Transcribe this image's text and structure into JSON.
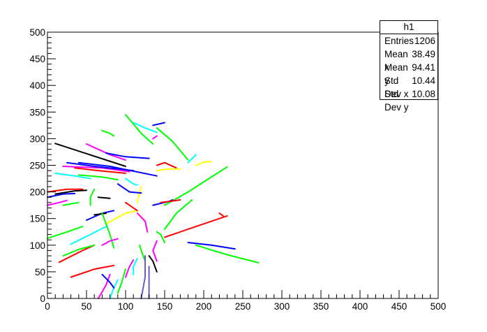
{
  "stats": {
    "title": "h1",
    "rows": [
      {
        "label": "Entries",
        "value": "1206"
      },
      {
        "label": "Mean x",
        "value": "38.49"
      },
      {
        "label": "Mean y",
        "value": "94.41"
      },
      {
        "label": "Std Dev x",
        "value": "10.44"
      },
      {
        "label": "Std Dev y",
        "value": "10.08"
      }
    ]
  },
  "chart_data": {
    "type": "scatter",
    "title": "",
    "xlabel": "",
    "ylabel": "",
    "xlim": [
      0,
      500
    ],
    "ylim": [
      0,
      500
    ],
    "x_ticks": [
      0,
      50,
      100,
      150,
      200,
      250,
      300,
      350,
      400,
      450,
      500
    ],
    "y_ticks": [
      0,
      50,
      100,
      150,
      200,
      250,
      300,
      350,
      400,
      450,
      500
    ],
    "grid": false,
    "legend": "none",
    "tracks": [
      {
        "color": "#000000",
        "points": [
          [
            10,
            291
          ],
          [
            100,
            248
          ]
        ]
      },
      {
        "color": "#ff00ff",
        "points": [
          [
            20,
            248
          ],
          [
            70,
            245
          ],
          [
            105,
            238
          ]
        ]
      },
      {
        "color": "#0000ff",
        "points": [
          [
            25,
            255
          ],
          [
            60,
            248
          ],
          [
            110,
            240
          ]
        ]
      },
      {
        "color": "#ff0000",
        "points": [
          [
            35,
            245
          ],
          [
            65,
            240
          ],
          [
            100,
            235
          ]
        ]
      },
      {
        "color": "#0000ff",
        "points": [
          [
            40,
            255
          ],
          [
            80,
            248
          ],
          [
            140,
            230
          ]
        ]
      },
      {
        "color": "#ff00ff",
        "points": [
          [
            50,
            290
          ],
          [
            80,
            270
          ],
          [
            100,
            260
          ]
        ]
      },
      {
        "color": "#0000ff",
        "points": [
          [
            75,
            273
          ],
          [
            100,
            266
          ],
          [
            130,
            263
          ]
        ]
      },
      {
        "color": "#00ffff",
        "points": [
          [
            10,
            235
          ],
          [
            35,
            230
          ],
          [
            55,
            225
          ]
        ]
      },
      {
        "color": "#00ff00",
        "points": [
          [
            40,
            232
          ],
          [
            70,
            228
          ],
          [
            90,
            223
          ]
        ]
      },
      {
        "color": "#ff0000",
        "points": [
          [
            0,
            200
          ],
          [
            25,
            205
          ],
          [
            45,
            205
          ]
        ]
      },
      {
        "color": "#000000",
        "points": [
          [
            10,
            196
          ],
          [
            35,
            202
          ],
          [
            50,
            203
          ]
        ]
      },
      {
        "color": "#0000ff",
        "points": [
          [
            0,
            190
          ],
          [
            20,
            196
          ],
          [
            35,
            197
          ]
        ]
      },
      {
        "color": "#ff00ff",
        "points": [
          [
            0,
            175
          ],
          [
            15,
            180
          ],
          [
            25,
            184
          ]
        ]
      },
      {
        "color": "#00ff00",
        "points": [
          [
            0,
            113
          ],
          [
            25,
            125
          ],
          [
            45,
            135
          ]
        ]
      },
      {
        "color": "#00ffff",
        "points": [
          [
            30,
            102
          ],
          [
            55,
            120
          ],
          [
            75,
            135
          ]
        ]
      },
      {
        "color": "#ff0000",
        "points": [
          [
            15,
            68
          ],
          [
            45,
            90
          ],
          [
            60,
            100
          ]
        ]
      },
      {
        "color": "#ff0000",
        "points": [
          [
            30,
            40
          ],
          [
            60,
            55
          ],
          [
            85,
            62
          ]
        ]
      },
      {
        "color": "#00ff00",
        "points": [
          [
            20,
            80
          ],
          [
            40,
            92
          ],
          [
            60,
            100
          ]
        ]
      },
      {
        "color": "#0000ff",
        "points": [
          [
            50,
            147
          ],
          [
            70,
            160
          ],
          [
            85,
            165
          ]
        ]
      },
      {
        "color": "#00ff00",
        "points": [
          [
            55,
            175
          ],
          [
            55,
            190
          ],
          [
            60,
            205
          ]
        ]
      },
      {
        "color": "#000000",
        "points": [
          [
            65,
            190
          ],
          [
            80,
            188
          ]
        ]
      },
      {
        "color": "#000000",
        "points": [
          [
            60,
            157
          ],
          [
            75,
            160
          ]
        ]
      },
      {
        "color": "#ffff00",
        "points": [
          [
            75,
            140
          ],
          [
            100,
            160
          ],
          [
            115,
            165
          ]
        ]
      },
      {
        "color": "#00ff00",
        "points": [
          [
            70,
            160
          ],
          [
            80,
            120
          ],
          [
            85,
            95
          ]
        ]
      },
      {
        "color": "#ff00ff",
        "points": [
          [
            70,
            100
          ],
          [
            80,
            108
          ],
          [
            90,
            112
          ]
        ]
      },
      {
        "color": "#ff00ff",
        "points": [
          [
            65,
            0
          ],
          [
            75,
            25
          ],
          [
            80,
            45
          ]
        ]
      },
      {
        "color": "#00ffff",
        "points": [
          [
            80,
            0
          ],
          [
            85,
            20
          ],
          [
            90,
            35
          ]
        ]
      },
      {
        "color": "#0000ff",
        "points": [
          [
            70,
            45
          ],
          [
            80,
            30
          ],
          [
            85,
            20
          ]
        ]
      },
      {
        "color": "#00ff00",
        "points": [
          [
            90,
            10
          ],
          [
            95,
            30
          ],
          [
            100,
            55
          ]
        ]
      },
      {
        "color": "#ff00ff",
        "points": [
          [
            100,
            40
          ],
          [
            105,
            60
          ],
          [
            110,
            72
          ]
        ]
      },
      {
        "color": "#00ffff",
        "points": [
          [
            110,
            45
          ],
          [
            110,
            60
          ],
          [
            115,
            75
          ]
        ]
      },
      {
        "color": "#00ff00",
        "points": [
          [
            125,
            70
          ],
          [
            120,
            90
          ],
          [
            118,
            100
          ]
        ]
      },
      {
        "color": "#ff00ff",
        "points": [
          [
            128,
            125
          ],
          [
            125,
            145
          ],
          [
            115,
            160
          ]
        ]
      },
      {
        "color": "#ffff00",
        "points": [
          [
            115,
            180
          ],
          [
            118,
            200
          ],
          [
            120,
            210
          ]
        ]
      },
      {
        "color": "#0000ff",
        "points": [
          [
            90,
            215
          ],
          [
            105,
            200
          ],
          [
            120,
            198
          ]
        ]
      },
      {
        "color": "#00ffff",
        "points": [
          [
            100,
            225
          ],
          [
            110,
            215
          ],
          [
            115,
            213
          ]
        ]
      },
      {
        "color": "#00ff00",
        "points": [
          [
            140,
            320
          ],
          [
            160,
            295
          ],
          [
            180,
            260
          ]
        ]
      },
      {
        "color": "#00ff00",
        "points": [
          [
            100,
            345
          ],
          [
            120,
            310
          ],
          [
            135,
            290
          ]
        ]
      },
      {
        "color": "#00ffff",
        "points": [
          [
            110,
            330
          ],
          [
            125,
            320
          ],
          [
            140,
            312
          ]
        ]
      },
      {
        "color": "#0000ff",
        "points": [
          [
            135,
            325
          ],
          [
            150,
            330
          ]
        ]
      },
      {
        "color": "#ff00ff",
        "points": [
          [
            135,
            300
          ],
          [
            140,
            305
          ]
        ]
      },
      {
        "color": "#00ff00",
        "points": [
          [
            70,
            315
          ],
          [
            80,
            310
          ],
          [
            85,
            305
          ]
        ]
      },
      {
        "color": "#ff0000",
        "points": [
          [
            140,
            250
          ],
          [
            150,
            255
          ],
          [
            165,
            245
          ]
        ]
      },
      {
        "color": "#ffff00",
        "points": [
          [
            140,
            240
          ],
          [
            155,
            243
          ],
          [
            170,
            243
          ]
        ]
      },
      {
        "color": "#ffff00",
        "points": [
          [
            190,
            250
          ],
          [
            200,
            256
          ],
          [
            210,
            257
          ]
        ]
      },
      {
        "color": "#00ffff",
        "points": [
          [
            180,
            255
          ],
          [
            190,
            270
          ]
        ]
      },
      {
        "color": "#00ff00",
        "points": [
          [
            150,
            175
          ],
          [
            180,
            200
          ],
          [
            230,
            247
          ]
        ]
      },
      {
        "color": "#00ff00",
        "points": [
          [
            150,
            130
          ],
          [
            165,
            160
          ],
          [
            185,
            185
          ]
        ]
      },
      {
        "color": "#ff0000",
        "points": [
          [
            150,
            115
          ],
          [
            190,
            135
          ],
          [
            230,
            155
          ]
        ]
      },
      {
        "color": "#ff0000",
        "points": [
          [
            220,
            160
          ],
          [
            225,
            155
          ]
        ]
      },
      {
        "color": "#0000ff",
        "points": [
          [
            135,
            175
          ],
          [
            155,
            182
          ],
          [
            160,
            185
          ]
        ]
      },
      {
        "color": "#ff0000",
        "points": [
          [
            145,
            180
          ],
          [
            160,
            183
          ],
          [
            170,
            185
          ]
        ]
      },
      {
        "color": "#00ff00",
        "points": [
          [
            140,
            125
          ],
          [
            145,
            120
          ],
          [
            150,
            105
          ]
        ]
      },
      {
        "color": "#ff00ff",
        "points": [
          [
            140,
            108
          ],
          [
            135,
            90
          ],
          [
            140,
            70
          ]
        ]
      },
      {
        "color": "#000000",
        "points": [
          [
            140,
            50
          ],
          [
            135,
            70
          ],
          [
            130,
            80
          ]
        ]
      },
      {
        "color": "#6a5acd",
        "points": [
          [
            130,
            0
          ],
          [
            130,
            30
          ],
          [
            130,
            60
          ]
        ]
      },
      {
        "color": "#6a5acd",
        "points": [
          [
            120,
            0
          ],
          [
            125,
            40
          ],
          [
            125,
            80
          ]
        ]
      },
      {
        "color": "#0000ff",
        "points": [
          [
            180,
            105
          ],
          [
            210,
            100
          ],
          [
            240,
            93
          ]
        ]
      },
      {
        "color": "#00ff00",
        "points": [
          [
            190,
            100
          ],
          [
            230,
            82
          ],
          [
            270,
            67
          ]
        ]
      },
      {
        "color": "#ff0000",
        "points": [
          [
            100,
            180
          ],
          [
            115,
            165
          ]
        ]
      },
      {
        "color": "#00ff00",
        "points": [
          [
            20,
            175
          ],
          [
            40,
            180
          ]
        ]
      }
    ]
  }
}
